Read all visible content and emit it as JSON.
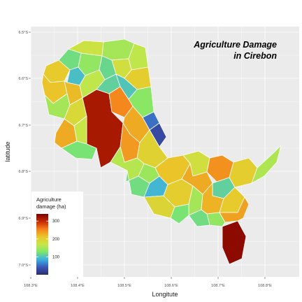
{
  "map": {
    "title_line1": "Agriculture Damage",
    "title_line2": "in Cirebon",
    "x_axis_title": "Longitute",
    "y_axis_title": "latitude",
    "x_ticks": [
      "108.3°E",
      "108.4°E",
      "108.5°E",
      "108.6°E",
      "108.7°E",
      "108.8°E"
    ],
    "y_ticks": [
      "6.5°S",
      "6.6°S",
      "6.7°S",
      "6.8°S",
      "6.9°S",
      "7.0°S"
    ],
    "panel_background": "#ebebeb",
    "grid_color": "#ffffff"
  },
  "legend": {
    "title_line1": "Agriculture",
    "title_line2": "damage (ha)",
    "ticks": [
      {
        "value": 300,
        "label": "300"
      },
      {
        "value": 200,
        "label": "200"
      },
      {
        "value": 100,
        "label": "100"
      }
    ],
    "range": [
      0,
      340
    ],
    "colors": [
      "#7a0000",
      "#c62a00",
      "#f5801a",
      "#e9c82a",
      "#c8e646",
      "#7de66c",
      "#3ab0e0",
      "#3a57b8",
      "#2b2b6e"
    ]
  },
  "regions": [
    {
      "id": "r01",
      "damage": 210
    },
    {
      "id": "r02",
      "damage": 120
    },
    {
      "id": "r03",
      "damage": 175
    },
    {
      "id": "r04",
      "damage": 150
    },
    {
      "id": "r05",
      "damage": 165
    },
    {
      "id": "r06",
      "damage": 215
    },
    {
      "id": "r07",
      "damage": 95
    },
    {
      "id": "r08",
      "damage": 140
    },
    {
      "id": "r09",
      "damage": 115
    },
    {
      "id": "r10",
      "damage": 180
    },
    {
      "id": "r11",
      "damage": 205
    },
    {
      "id": "r12",
      "damage": 220
    },
    {
      "id": "r13",
      "damage": 165
    },
    {
      "id": "r14",
      "damage": 110
    },
    {
      "id": "r15",
      "damage": 100
    },
    {
      "id": "r16",
      "damage": 135
    },
    {
      "id": "r17",
      "damage": 150
    },
    {
      "id": "r18",
      "damage": 190
    },
    {
      "id": "r19",
      "damage": 315
    },
    {
      "id": "r20",
      "damage": 250
    },
    {
      "id": "r21",
      "damage": 230
    },
    {
      "id": "r22",
      "damage": 170
    },
    {
      "id": "r23",
      "damage": 125
    },
    {
      "id": "r24",
      "damage": 55
    },
    {
      "id": "r25",
      "damage": 30
    },
    {
      "id": "r26",
      "damage": 230
    },
    {
      "id": "r27",
      "damage": 240
    },
    {
      "id": "r28",
      "damage": 200
    },
    {
      "id": "r29",
      "damage": 160
    },
    {
      "id": "r30",
      "damage": 120
    },
    {
      "id": "r31",
      "damage": 90
    },
    {
      "id": "r32",
      "damage": 145
    },
    {
      "id": "r33",
      "damage": 215
    },
    {
      "id": "r34",
      "damage": 205
    },
    {
      "id": "r35",
      "damage": 195
    },
    {
      "id": "r36",
      "damage": 180
    },
    {
      "id": "r37",
      "damage": 230
    },
    {
      "id": "r38",
      "damage": 245
    },
    {
      "id": "r39",
      "damage": 150
    },
    {
      "id": "r40",
      "damage": 125
    },
    {
      "id": "r41",
      "damage": 110
    },
    {
      "id": "r42",
      "damage": 205
    },
    {
      "id": "r43",
      "damage": 225
    },
    {
      "id": "r44",
      "damage": 210
    },
    {
      "id": "r45",
      "damage": 330
    },
    {
      "id": "r46",
      "damage": 140
    },
    {
      "id": "r47",
      "damage": 120
    },
    {
      "id": "r48",
      "damage": 155
    },
    {
      "id": "r49",
      "damage": 235
    }
  ]
}
